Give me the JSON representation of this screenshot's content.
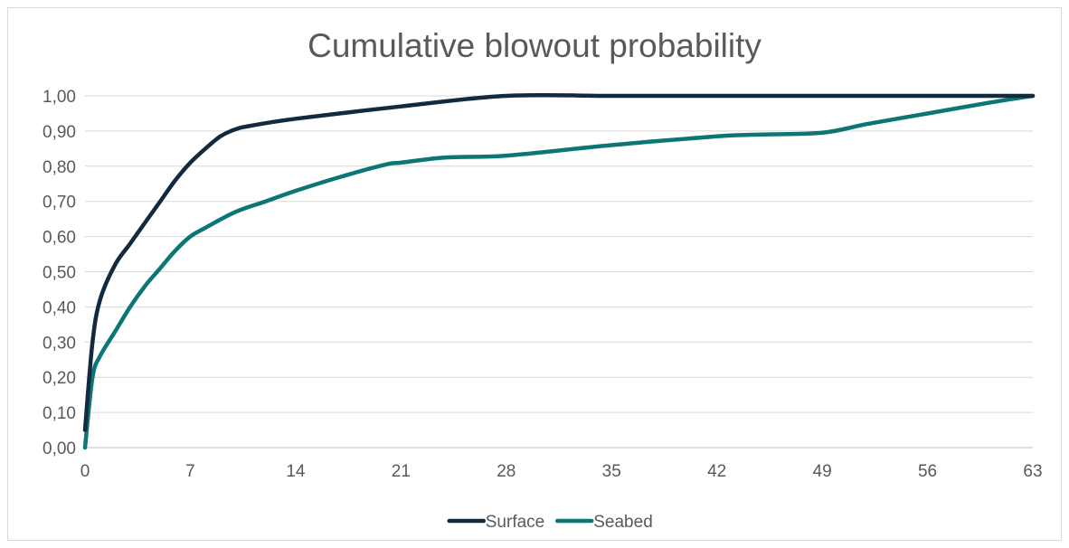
{
  "chart_data": {
    "type": "line",
    "title": "Cumulative blowout probability",
    "xlabel": "",
    "ylabel": "",
    "xlim": [
      0,
      63
    ],
    "ylim": [
      0,
      1
    ],
    "x_ticks": [
      "0",
      "7",
      "14",
      "21",
      "28",
      "35",
      "42",
      "49",
      "56",
      "63"
    ],
    "y_ticks": [
      "0,00",
      "0,10",
      "0,20",
      "0,30",
      "0,40",
      "0,50",
      "0,60",
      "0,70",
      "0,80",
      "0,90",
      "1,00"
    ],
    "grid": true,
    "legend_position": "bottom",
    "series": [
      {
        "name": "Surface",
        "color": "#13293d",
        "x": [
          0,
          0.5,
          1,
          2,
          3,
          4,
          5,
          6,
          7,
          8,
          9,
          10,
          11,
          14,
          21,
          28,
          35,
          42,
          49,
          56,
          63
        ],
        "y": [
          0.05,
          0.3,
          0.42,
          0.52,
          0.58,
          0.64,
          0.7,
          0.76,
          0.81,
          0.85,
          0.885,
          0.905,
          0.915,
          0.935,
          0.97,
          1.0,
          1.0,
          1.0,
          1.0,
          1.0,
          1.0
        ]
      },
      {
        "name": "Seabed",
        "color": "#0b7675",
        "x": [
          0,
          0.5,
          1,
          2,
          3,
          4,
          5,
          6,
          7,
          8,
          10,
          12,
          14,
          17,
          20,
          21,
          24,
          28,
          35,
          42,
          45,
          49,
          52,
          56,
          60,
          63
        ],
        "y": [
          0.0,
          0.2,
          0.26,
          0.33,
          0.4,
          0.46,
          0.51,
          0.56,
          0.6,
          0.625,
          0.67,
          0.7,
          0.73,
          0.77,
          0.805,
          0.81,
          0.825,
          0.83,
          0.86,
          0.885,
          0.89,
          0.895,
          0.92,
          0.95,
          0.98,
          1.0
        ]
      }
    ]
  }
}
